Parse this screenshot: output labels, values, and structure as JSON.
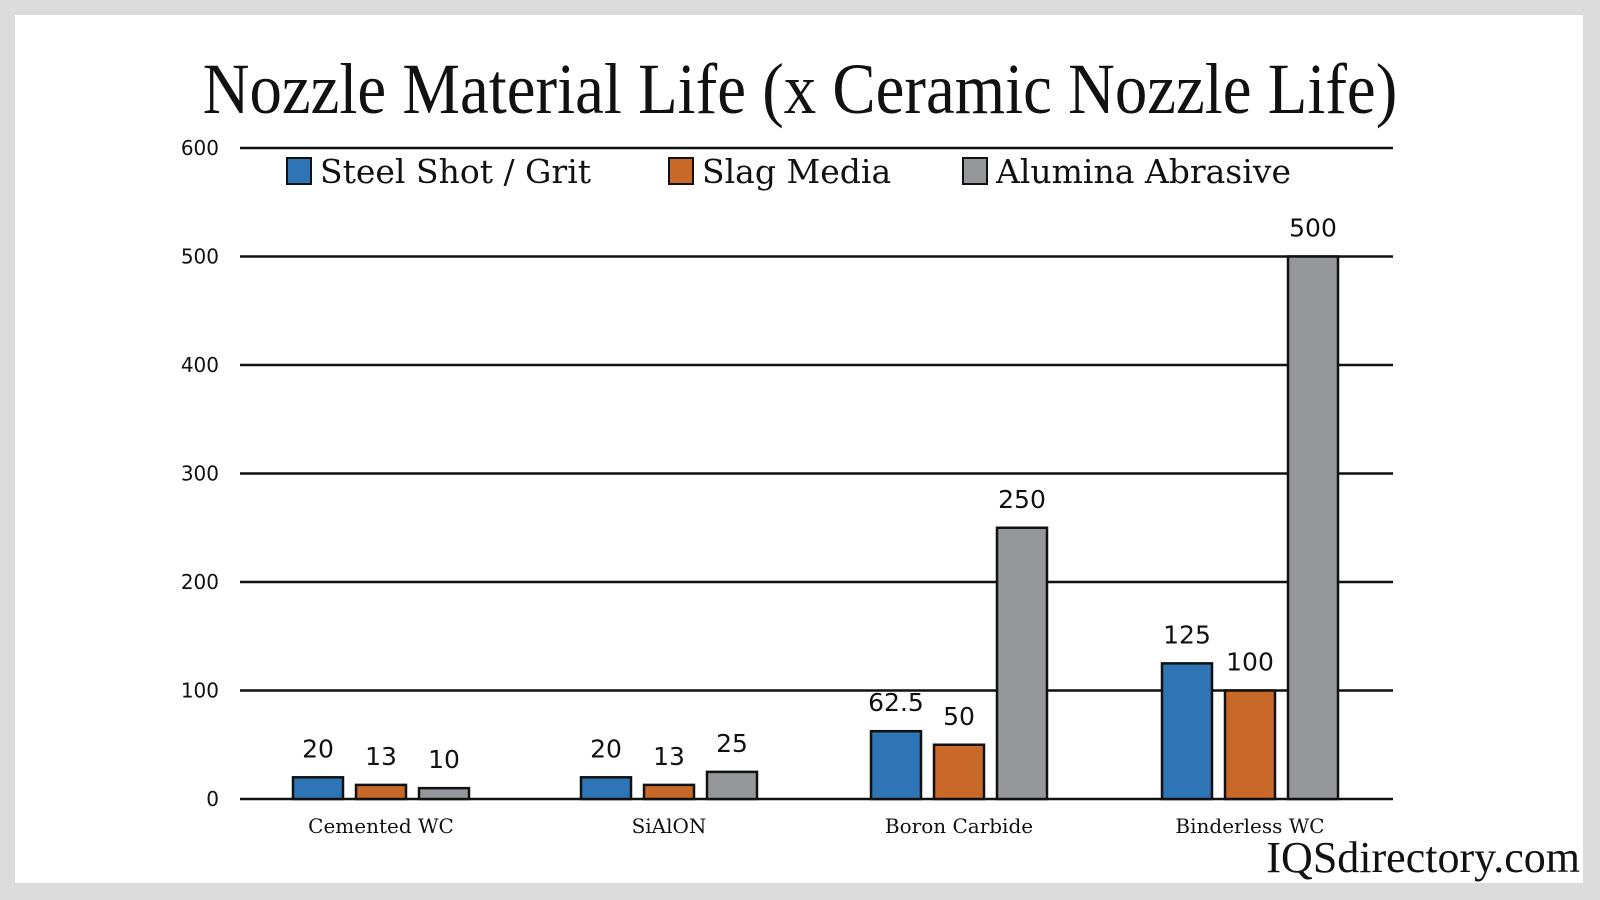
{
  "chart_data": {
    "type": "bar",
    "title": "Nozzle Material Life (x Ceramic Nozzle Life)",
    "categories": [
      "Cemented WC",
      "SiAlON",
      "Boron Carbide",
      "Binderless WC"
    ],
    "series": [
      {
        "name": "Steel Shot / Grit",
        "color": "#2e75b6",
        "values": [
          20,
          20,
          62.5,
          125
        ],
        "labels": [
          "20",
          "20",
          "62.5",
          "125"
        ]
      },
      {
        "name": "Slag Media",
        "color": "#c8692a",
        "values": [
          13,
          13,
          50,
          100
        ],
        "labels": [
          "13",
          "13",
          "50",
          "100"
        ]
      },
      {
        "name": "Alumina Abrasive",
        "color": "#96979b",
        "values": [
          10,
          25,
          250,
          500
        ],
        "labels": [
          "10",
          "25",
          "250",
          "500"
        ]
      }
    ],
    "yticks": [
      0,
      100,
      200,
      300,
      400,
      500,
      600
    ],
    "ylim": [
      0,
      600
    ],
    "xlabel": "",
    "ylabel": "",
    "grid": true,
    "legend": "top"
  },
  "watermark": "IQSdirectory.com"
}
